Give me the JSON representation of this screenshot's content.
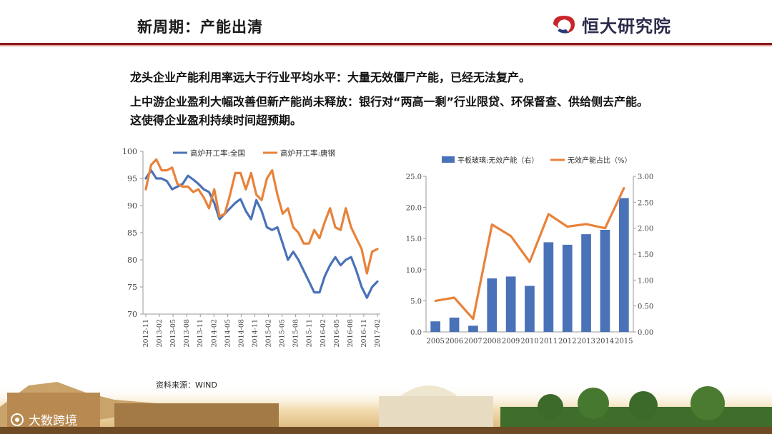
{
  "header": {
    "title": "新周期：产能出清",
    "brand": "恒大研究院"
  },
  "body": {
    "paragraph1": "龙头企业产能利用率远大于行业平均水平：大量无效僵尸产能，已经无法复产。",
    "paragraph2": "上中游企业盈利大幅改善但新产能尚未释放：银行对“两高一剩”行业限贷、环保督查、供给侧去产能。这使得企业盈利持续时间超预期。"
  },
  "source": "资料来源：WIND",
  "footer": {
    "watermark": "大数跨境"
  },
  "colors": {
    "blue": "#4a72b8",
    "orange": "#e8823a",
    "header_rule": "#8b1a1a"
  },
  "chart_data": [
    {
      "type": "line",
      "title": "",
      "xlabel": "",
      "ylabel": "",
      "ylim": [
        70,
        100
      ],
      "yticks": [
        "70",
        "75",
        "80",
        "85",
        "90",
        "95",
        "100"
      ],
      "x_tick_labels": [
        "2012-11",
        "2013-02",
        "2013-05",
        "2013-08",
        "2013-11",
        "2014-02",
        "2014-05",
        "2014-08",
        "2014-11",
        "2015-02",
        "2015-05",
        "2015-08",
        "2015-11",
        "2016-02",
        "2016-05",
        "2016-08",
        "2016-11",
        "2017-02"
      ],
      "legend_position": "top",
      "grid": false,
      "series": [
        {
          "name": "高炉开工率:全国",
          "color": "#4a72b8",
          "values": [
            95,
            96.5,
            95,
            95,
            94.5,
            93,
            93.5,
            94,
            95.5,
            94.8,
            94,
            93,
            92.5,
            90.5,
            87.5,
            88.5,
            89.5,
            90.5,
            91.2,
            89,
            87.5,
            91,
            89,
            86,
            85.5,
            86,
            83,
            80,
            81.5,
            80,
            78,
            76,
            74,
            74,
            77,
            79,
            80.5,
            79,
            80,
            80.5,
            78,
            75,
            73,
            75,
            76
          ]
        },
        {
          "name": "高炉开工率:唐钢",
          "color": "#e8823a",
          "values": [
            93,
            97.5,
            98.5,
            96.5,
            96.5,
            97,
            94,
            93.5,
            93.5,
            92.5,
            93,
            91.5,
            89.5,
            93,
            88,
            88.5,
            92,
            96,
            96,
            93,
            96,
            92,
            91,
            95,
            96.5,
            92,
            88.5,
            89.5,
            86,
            85,
            83,
            83,
            85.5,
            84,
            87,
            89.5,
            86,
            85.5,
            89.5,
            86,
            84,
            82,
            77.5,
            81.5,
            82
          ]
        }
      ]
    },
    {
      "type": "bar",
      "title": "",
      "categories": [
        "2005",
        "2006",
        "2007",
        "2008",
        "2009",
        "2010",
        "2011",
        "2012",
        "2013",
        "2014",
        "2015"
      ],
      "series": [
        {
          "name": "平板玻璃:无效产能（右）",
          "type": "bar",
          "axis": "left",
          "color": "#4a72b8",
          "values": [
            1.7,
            2.3,
            1.0,
            8.6,
            8.9,
            7.4,
            14.4,
            14.0,
            15.7,
            16.4,
            21.5
          ]
        },
        {
          "name": "无效产能占比（%）",
          "type": "line",
          "axis": "right",
          "color": "#e8823a",
          "values": [
            0.6,
            0.66,
            0.25,
            2.07,
            1.85,
            1.35,
            2.27,
            2.03,
            2.08,
            2.0,
            2.77
          ]
        }
      ],
      "ylim_left": [
        0,
        25
      ],
      "yticks_left": [
        "0.0",
        "5.0",
        "10.0",
        "15.0",
        "20.0",
        "25.0"
      ],
      "ylim_right": [
        0,
        3
      ],
      "yticks_right": [
        "0.00",
        "0.50",
        "1.00",
        "1.50",
        "2.00",
        "2.50",
        "3.00"
      ],
      "legend_position": "top",
      "grid": false
    }
  ]
}
